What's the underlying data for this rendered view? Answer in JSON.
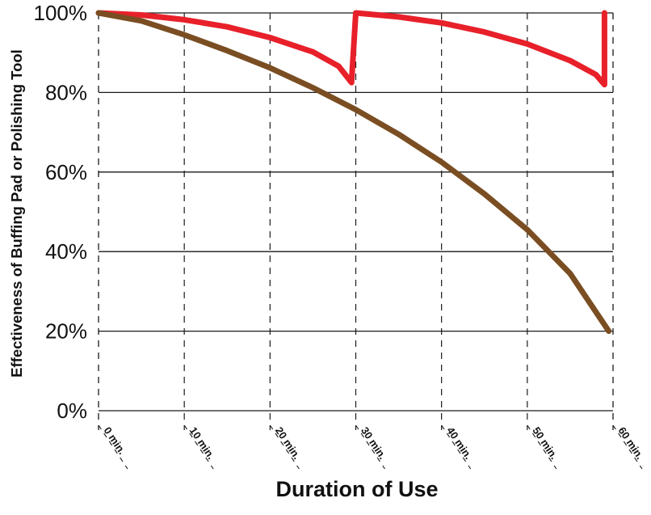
{
  "chart_data": {
    "type": "line",
    "title": "",
    "xlabel": "Duration of Use",
    "ylabel": "Effectiveness of Buffing Pad or Polishing Tool",
    "xlim": [
      0,
      60
    ],
    "ylim": [
      0,
      100
    ],
    "x_ticks": [
      0,
      10,
      20,
      30,
      40,
      50,
      60
    ],
    "x_tick_labels": [
      "0 min.",
      "10 min.",
      "20 min.",
      "30 min.",
      "40 min.",
      "50 min.",
      "60 min."
    ],
    "y_ticks": [
      0,
      20,
      40,
      60,
      80,
      100
    ],
    "y_tick_labels": [
      "0%",
      "20%",
      "40%",
      "60%",
      "80%",
      "100%"
    ],
    "grid": {
      "horizontal": "solid",
      "vertical": "dashed"
    },
    "legend": "none",
    "series": [
      {
        "color": "#e8202a",
        "x": [
          0,
          5,
          10,
          15,
          20,
          25,
          28,
          29.5,
          29.5,
          30,
          35,
          40,
          45,
          50,
          55,
          58,
          59,
          59,
          59
        ],
        "y": [
          100,
          99.5,
          98.3,
          96.5,
          93.8,
          90.2,
          86.6,
          82.5,
          82.5,
          100,
          99,
          97.5,
          95.2,
          92.2,
          88,
          84.5,
          82,
          82,
          100
        ]
      },
      {
        "color": "#7a4e22",
        "x": [
          0,
          5,
          10,
          15,
          20,
          25,
          30,
          35,
          40,
          45,
          50,
          55,
          59.5
        ],
        "y": [
          100,
          98,
          94.5,
          90.5,
          86.2,
          81.2,
          75.7,
          69.5,
          62.5,
          54.5,
          45.5,
          34.5,
          20
        ]
      }
    ]
  }
}
